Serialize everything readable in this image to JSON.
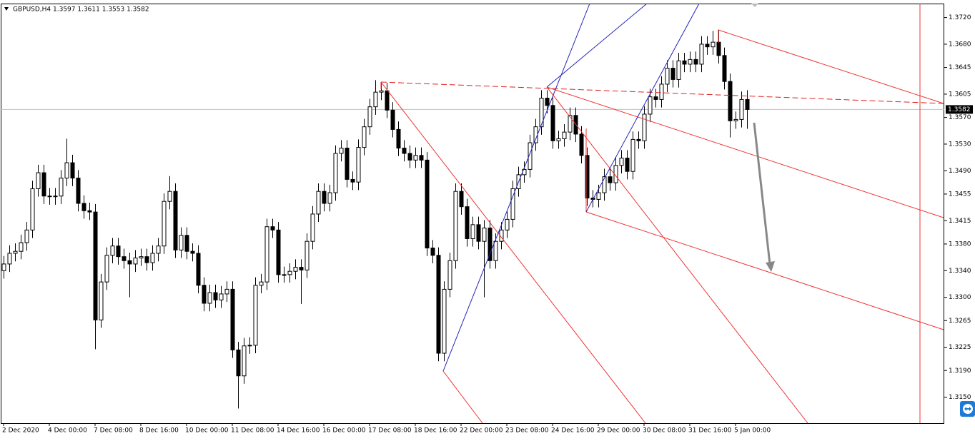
{
  "chart_data": {
    "type": "candlestick",
    "title": "GBPUSD,H4  1.3597 1.3611 1.3553 1.3582",
    "categories": [
      "2 Dec 2020",
      null,
      null,
      null,
      null,
      null,
      null,
      null,
      "4 Dec 00:00",
      null,
      null,
      null,
      null,
      null,
      null,
      null,
      "7 Dec 08:00",
      null,
      null,
      null,
      null,
      null,
      null,
      null,
      "8 Dec 16:00",
      null,
      null,
      null,
      null,
      null,
      null,
      null,
      "10 Dec 00:00",
      null,
      null,
      null,
      null,
      null,
      null,
      null,
      "11 Dec 08:00",
      null,
      null,
      null,
      null,
      null,
      null,
      null,
      "14 Dec 16:00",
      null,
      null,
      null,
      null,
      null,
      null,
      null,
      "16 Dec 00:00",
      null,
      null,
      null,
      null,
      null,
      null,
      null,
      "17 Dec 08:00",
      null,
      null,
      null,
      null,
      null,
      null,
      null,
      "18 Dec 16:00",
      null,
      null,
      null,
      null,
      null,
      null,
      null,
      "22 Dec 00:00",
      null,
      null,
      null,
      null,
      null,
      null,
      null,
      "23 Dec 08:00",
      null,
      null,
      null,
      null,
      null,
      null,
      null,
      "24 Dec 16:00",
      null,
      null,
      null,
      null,
      null,
      null,
      null,
      "29 Dec 00:00",
      null,
      null,
      null,
      null,
      null,
      null,
      null,
      "30 Dec 08:00",
      null,
      null,
      null,
      null,
      null,
      null,
      null,
      "31 Dec 16:00",
      null,
      null,
      null,
      null,
      null,
      null,
      null,
      "5 Jan 00:00",
      null,
      null
    ],
    "open": [
      1.334,
      1.335,
      1.3366,
      1.3369,
      1.3382,
      1.3401,
      1.3463,
      1.3487,
      1.3452,
      1.3451,
      1.3452,
      1.3479,
      1.3502,
      1.3479,
      1.3441,
      1.343,
      1.3428,
      1.3266,
      1.3323,
      1.3363,
      1.3377,
      1.3361,
      1.3355,
      1.335,
      1.3359,
      1.3361,
      1.3352,
      1.3366,
      1.3377,
      1.3444,
      1.3459,
      1.3371,
      1.3393,
      1.3369,
      1.3366,
      1.3318,
      1.3291,
      1.3307,
      1.3296,
      1.3305,
      1.3312,
      1.3221,
      1.3182,
      1.3227,
      1.3228,
      1.3318,
      1.3323,
      1.3406,
      1.3401,
      1.3334,
      1.3334,
      1.3339,
      1.3345,
      1.3341,
      1.3384,
      1.3425,
      1.3459,
      1.3441,
      1.3457,
      1.3516,
      1.3524,
      1.3477,
      1.3473,
      1.3525,
      1.3556,
      1.3586,
      1.3608,
      1.361,
      1.3581,
      1.3552,
      1.3524,
      1.3516,
      1.3506,
      1.3513,
      1.3506,
      1.3374,
      1.3363,
      1.3216,
      1.3312,
      1.3355,
      1.3459,
      1.3436,
      1.3388,
      1.3409,
      1.3384,
      1.3404,
      1.3355,
      1.3384,
      1.3401,
      1.3417,
      1.3463,
      1.3484,
      1.3492,
      1.3532,
      1.3556,
      1.3599,
      1.3588,
      1.3535,
      1.3538,
      1.3548,
      1.3573,
      1.3545,
      1.3513,
      1.3449,
      1.3447,
      1.3457,
      1.3481,
      1.3472,
      1.3498,
      1.3509,
      1.3489,
      1.3537,
      1.3535,
      1.3575,
      1.3601,
      1.3597,
      1.362,
      1.3644,
      1.3627,
      1.3655,
      1.365,
      1.3657,
      1.365,
      1.368,
      1.3676,
      1.3683,
      1.3663,
      1.3624,
      1.3565,
      1.3567,
      1.3597
    ],
    "high": [
      1.3362,
      1.3378,
      1.3381,
      1.3394,
      1.3413,
      1.3475,
      1.3499,
      1.3499,
      1.3464,
      1.3464,
      1.3491,
      1.3538,
      1.3514,
      1.3491,
      1.3453,
      1.3442,
      1.344,
      1.3335,
      1.3375,
      1.3389,
      1.3389,
      1.3373,
      1.3367,
      1.3371,
      1.3373,
      1.3373,
      1.3378,
      1.3389,
      1.3456,
      1.3482,
      1.3471,
      1.3405,
      1.3405,
      1.3381,
      1.3378,
      1.333,
      1.3319,
      1.3319,
      1.3317,
      1.3324,
      1.3324,
      1.3233,
      1.3239,
      1.324,
      1.333,
      1.3335,
      1.3418,
      1.3418,
      1.3413,
      1.3346,
      1.3351,
      1.3357,
      1.3357,
      1.3396,
      1.3437,
      1.3471,
      1.3471,
      1.3469,
      1.3528,
      1.3536,
      1.3536,
      1.3489,
      1.3537,
      1.3568,
      1.3598,
      1.3626,
      1.3622,
      1.3622,
      1.3593,
      1.3564,
      1.3536,
      1.3528,
      1.3525,
      1.3525,
      1.3518,
      1.3386,
      1.3375,
      1.3324,
      1.3367,
      1.3471,
      1.3471,
      1.3448,
      1.3421,
      1.3421,
      1.3416,
      1.3416,
      1.3396,
      1.3413,
      1.3429,
      1.3475,
      1.3496,
      1.3504,
      1.3544,
      1.3568,
      1.3611,
      1.3611,
      1.36,
      1.355,
      1.356,
      1.3585,
      1.3585,
      1.3557,
      1.3525,
      1.3461,
      1.3469,
      1.3493,
      1.3493,
      1.351,
      1.3521,
      1.3521,
      1.3549,
      1.3549,
      1.3587,
      1.3613,
      1.3613,
      1.3632,
      1.3656,
      1.3656,
      1.3667,
      1.3667,
      1.3669,
      1.3669,
      1.3692,
      1.3692,
      1.37,
      1.3702,
      1.3675,
      1.3636,
      1.3579,
      1.3609,
      1.3611
    ],
    "low": [
      1.3328,
      1.3338,
      1.3354,
      1.3357,
      1.337,
      1.3389,
      1.3451,
      1.344,
      1.3439,
      1.3439,
      1.344,
      1.3467,
      1.3467,
      1.3429,
      1.3418,
      1.3416,
      1.3222,
      1.3254,
      1.3311,
      1.3351,
      1.3349,
      1.3343,
      1.33,
      1.3338,
      1.3347,
      1.334,
      1.334,
      1.3354,
      1.3365,
      1.3432,
      1.3359,
      1.3359,
      1.3357,
      1.3354,
      1.3306,
      1.3279,
      1.3279,
      1.3284,
      1.3284,
      1.3293,
      1.3209,
      1.3133,
      1.317,
      1.3215,
      1.3216,
      1.3306,
      1.3311,
      1.3389,
      1.3322,
      1.3322,
      1.3322,
      1.3327,
      1.329,
      1.3329,
      1.3372,
      1.3413,
      1.3429,
      1.3429,
      1.3445,
      1.3504,
      1.3465,
      1.3461,
      1.3461,
      1.3513,
      1.3544,
      1.3574,
      1.3596,
      1.3569,
      1.354,
      1.3512,
      1.3504,
      1.3494,
      1.3494,
      1.3494,
      1.3362,
      1.3351,
      1.3204,
      1.3204,
      1.33,
      1.3343,
      1.3424,
      1.3376,
      1.3376,
      1.3372,
      1.33,
      1.3343,
      1.3343,
      1.3372,
      1.3389,
      1.3405,
      1.3451,
      1.3472,
      1.348,
      1.352,
      1.3544,
      1.3576,
      1.3523,
      1.3523,
      1.3526,
      1.3536,
      1.3533,
      1.3501,
      1.3437,
      1.3435,
      1.3435,
      1.3445,
      1.346,
      1.346,
      1.3486,
      1.3477,
      1.3477,
      1.3523,
      1.3523,
      1.3563,
      1.3585,
      1.3585,
      1.3608,
      1.3615,
      1.3615,
      1.3638,
      1.3638,
      1.3638,
      1.3638,
      1.3664,
      1.3664,
      1.3651,
      1.3612,
      1.354,
      1.3553,
      1.3555,
      1.3553
    ],
    "close": [
      1.335,
      1.3366,
      1.3369,
      1.3382,
      1.3401,
      1.3463,
      1.3487,
      1.3452,
      1.3451,
      1.3452,
      1.3479,
      1.3502,
      1.3479,
      1.3441,
      1.343,
      1.3428,
      1.3266,
      1.3323,
      1.3363,
      1.3377,
      1.3361,
      1.3355,
      1.335,
      1.3359,
      1.3361,
      1.3352,
      1.3366,
      1.3377,
      1.3444,
      1.3459,
      1.3371,
      1.3393,
      1.3369,
      1.3366,
      1.3318,
      1.3291,
      1.3307,
      1.3296,
      1.3305,
      1.3312,
      1.3221,
      1.3182,
      1.3227,
      1.3228,
      1.3318,
      1.3323,
      1.3406,
      1.3401,
      1.3334,
      1.3334,
      1.3339,
      1.3345,
      1.3341,
      1.3384,
      1.3425,
      1.3459,
      1.3441,
      1.3457,
      1.3516,
      1.3524,
      1.3477,
      1.3473,
      1.3525,
      1.3556,
      1.3586,
      1.3608,
      1.361,
      1.3581,
      1.3552,
      1.3524,
      1.3516,
      1.3506,
      1.3513,
      1.3506,
      1.3374,
      1.3363,
      1.3216,
      1.3312,
      1.3355,
      1.3459,
      1.3436,
      1.3388,
      1.3409,
      1.3384,
      1.3404,
      1.3355,
      1.3384,
      1.3401,
      1.3417,
      1.3463,
      1.3484,
      1.3492,
      1.3532,
      1.3556,
      1.3599,
      1.3588,
      1.3535,
      1.3538,
      1.3548,
      1.3573,
      1.3545,
      1.3513,
      1.3449,
      1.3447,
      1.3457,
      1.3481,
      1.3472,
      1.3498,
      1.3509,
      1.3489,
      1.3537,
      1.3535,
      1.3575,
      1.3601,
      1.3597,
      1.362,
      1.3644,
      1.3627,
      1.3655,
      1.365,
      1.3657,
      1.365,
      1.368,
      1.3676,
      1.3683,
      1.3663,
      1.3624,
      1.3565,
      1.3567,
      1.3597,
      1.3582
    ],
    "up_color": "#ffffff",
    "down_color": "#000000",
    "outline_color": "#000000",
    "ylim": [
      1.3111,
      1.3741
    ],
    "yticks": [
      {
        "value": 1.372,
        "label": "1.3720"
      },
      {
        "value": 1.368,
        "label": "1.3680"
      },
      1.3645,
      1.3605,
      {
        "value": 1.357,
        "label": "1.3570"
      },
      {
        "value": 1.353,
        "label": "1.3530"
      },
      {
        "value": 1.349,
        "label": "1.3490"
      },
      1.3455,
      1.3415,
      {
        "value": 1.338,
        "label": "1.3380"
      },
      {
        "value": 1.334,
        "label": "1.3340"
      },
      {
        "value": 1.33,
        "label": "1.3300"
      },
      1.3265,
      1.3225,
      {
        "value": 1.319,
        "label": "1.3190"
      },
      {
        "value": 1.315,
        "label": "1.3150"
      }
    ],
    "grid": false
  }
}
